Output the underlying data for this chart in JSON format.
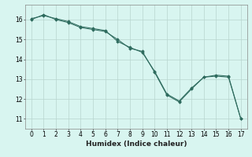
{
  "title": "",
  "xlabel": "Humidex (Indice chaleur)",
  "ylabel": "",
  "x": [
    0,
    1,
    2,
    3,
    4,
    5,
    6,
    7,
    8,
    9,
    10,
    11,
    12,
    13,
    14,
    15,
    16,
    17
  ],
  "line1": [
    16.0,
    16.25,
    16.0,
    15.85,
    15.6,
    15.5,
    15.4,
    15.0,
    14.55,
    14.4,
    13.35,
    12.2,
    11.85,
    12.5,
    13.1,
    13.15,
    13.1,
    11.0
  ],
  "line2": [
    16.05,
    16.2,
    16.05,
    15.9,
    15.65,
    15.55,
    15.45,
    14.9,
    14.6,
    14.35,
    13.4,
    12.25,
    11.9,
    12.55,
    13.1,
    13.2,
    13.15,
    11.0
  ],
  "line_color": "#2e6b5e",
  "marker": "D",
  "marker_size": 1.8,
  "bg_color": "#d8f5f0",
  "grid_color": "#b8d4ce",
  "ylim": [
    10.5,
    16.75
  ],
  "yticks": [
    11,
    12,
    13,
    14,
    15,
    16
  ],
  "xlim": [
    -0.5,
    17.5
  ],
  "xlabel_fontsize": 6.5,
  "tick_fontsize": 5.5,
  "linewidth": 0.75
}
